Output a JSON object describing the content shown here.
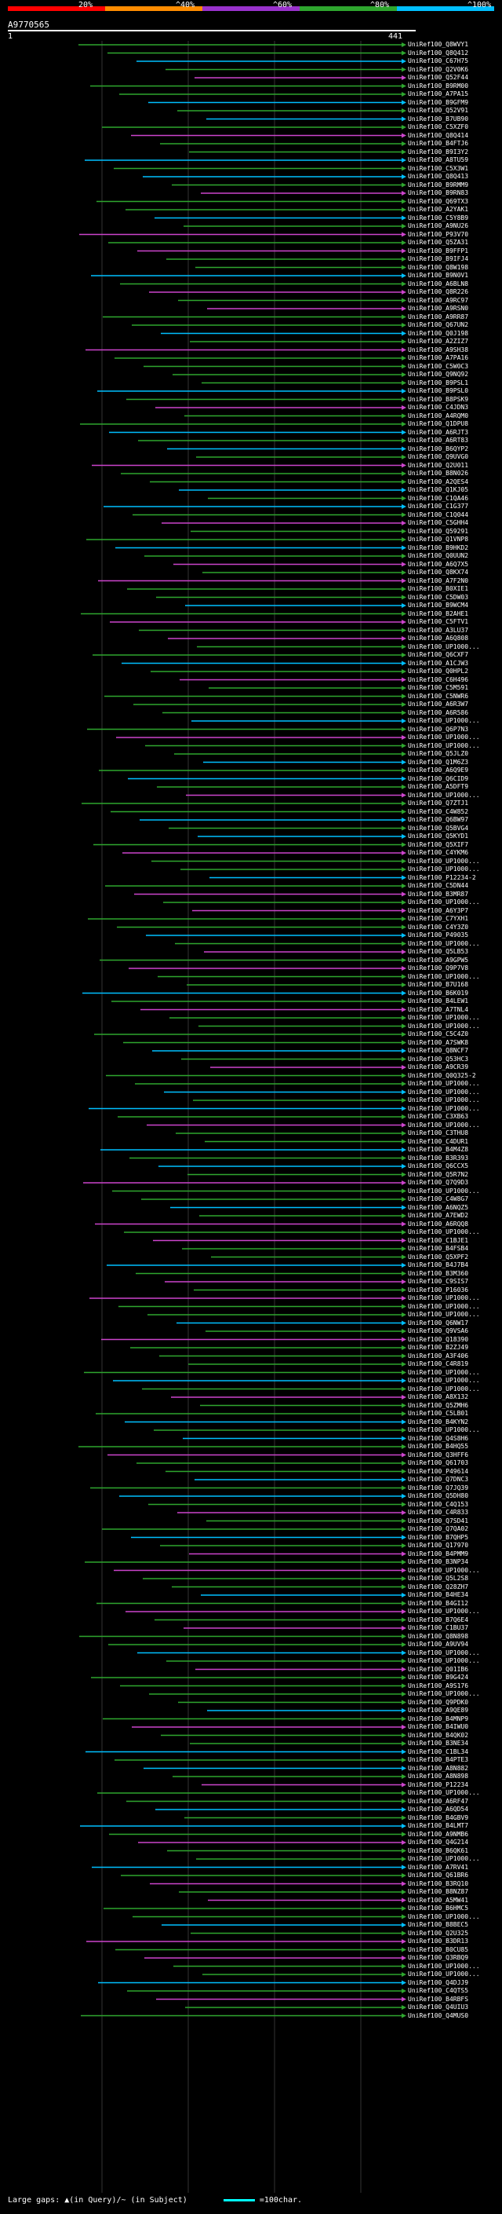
{
  "legend": [
    {
      "label": "20%",
      "color": "#ff0000"
    },
    {
      "label": "^40%",
      "color": "#ff8c00"
    },
    {
      "label": "^60%",
      "color": "#9932cc"
    },
    {
      "label": "^80%",
      "color": "#2ea62e"
    },
    {
      "label": "^100%",
      "color": "#00bfff"
    }
  ],
  "query": {
    "id": "A9770565",
    "start": "1",
    "end": "441"
  },
  "footer": {
    "text": "Large gaps: ▲(in Query)/~ (in Subject)",
    "scale": "=100char."
  },
  "hits": [
    "UniRef100_Q8WVY1",
    "UniRef100_Q8Q412",
    "UniRef100_C67H75",
    "UniRef100_Q2V0K6",
    "UniRef100_Q52F44",
    "UniRef100_B9RM00",
    "UniRef100_A7PA15",
    "UniRef100_B9GFM9",
    "UniRef100_Q52V91",
    "UniRef100_B7UB90",
    "UniRef100_C5XZF0",
    "UniRef100_Q8Q414",
    "UniRef100_B4FTJ6",
    "UniRef100_B9I3Y2",
    "UniRef100_A8TU59",
    "UniRef100_C5X3W1",
    "UniRef100_Q8Q413",
    "UniRef100_B9RMM9",
    "UniRef100_B9RN83",
    "UniRef100_Q69TX3",
    "UniRef100_A2YAK1",
    "UniRef100_C5Y8B9",
    "UniRef100_A9NU26",
    "UniRef100_P93V70",
    "UniRef100_Q5ZA31",
    "UniRef100_B9FFP1",
    "UniRef100_B9IFJ4",
    "UniRef100_Q8W198",
    "UniRef100_B9N0V1",
    "UniRef100_A6BLN8",
    "UniRef100_Q8R226",
    "UniRef100_A9RC97",
    "UniRef100_A9RSN0",
    "UniRef100_A9RR87",
    "UniRef100_Q67UN2",
    "UniRef100_Q0J198",
    "UniRef100_A2ZIZ7",
    "UniRef100_A9SH38",
    "UniRef100_A7PA16",
    "UniRef100_C5W0C3",
    "UniRef100_Q9NQ92",
    "UniRef100_B9PSL1",
    "UniRef100_B9PSL0",
    "UniRef100_B8PSK9",
    "UniRef100_C4JDN3",
    "UniRef100_A4RQM0",
    "UniRef100_Q1DPU8",
    "UniRef100_A6RJT3",
    "UniRef100_A6RT83",
    "UniRef100_B6QYP2",
    "UniRef100_Q9UVG0",
    "UniRef100_Q2U011",
    "UniRef100_B8N026",
    "UniRef100_A2QES4",
    "UniRef100_Q1KJ05",
    "UniRef100_C1QA46",
    "UniRef100_C1G377",
    "UniRef100_C1Q044",
    "UniRef100_C5GHH4",
    "UniRef100_Q59291",
    "UniRef100_Q1VNP8",
    "UniRef100_B9HKD2",
    "UniRef100_Q0UUN2",
    "UniRef100_A6Q7X5",
    "UniRef100_Q8KX74",
    "UniRef100_A7F2N0",
    "UniRef100_B0XIE1",
    "UniRef100_C5DW03",
    "UniRef100_B9WCM4",
    "UniRef100_B2AHE1",
    "UniRef100_C5FTV1",
    "UniRef100_A3LU37",
    "UniRef100_A6Q808",
    "UniRef100_UP1000...",
    "UniRef100_Q6CXF7",
    "UniRef100_A1CJW3",
    "UniRef100_Q0HPL2",
    "UniRef100_C6H496",
    "UniRef100_C5M591",
    "UniRef100_C5NWR6",
    "UniRef100_A6R3W7",
    "UniRef100_A6R586",
    "UniRef100_UP1000...",
    "UniRef100_Q6P7N3",
    "UniRef100_UP1000...",
    "UniRef100_UP1000...",
    "UniRef100_Q5JLZ0",
    "UniRef100_Q1M6Z3",
    "UniRef100_A6Q9E9",
    "UniRef100_Q6CID9",
    "UniRef100_A5DFT9",
    "UniRef100_UP1000...",
    "UniRef100_Q7ZTJ1",
    "UniRef100_C4W852",
    "UniRef100_Q6BW97",
    "UniRef100_Q5BVG4",
    "UniRef100_Q5KYD1",
    "UniRef100_Q5XIF7",
    "UniRef100_C4YKM6",
    "UniRef100_UP1000...",
    "UniRef100_UP1000...",
    "UniRef100_P12234-2",
    "UniRef100_C5DN44",
    "UniRef100_B3MR87",
    "UniRef100_UP1000...",
    "UniRef100_A6Y3P7",
    "UniRef100_C7YXH1",
    "UniRef100_C4Y3Z0",
    "UniRef100_P49035",
    "UniRef100_UP1000...",
    "UniRef100_Q5LB53",
    "UniRef100_A9GPW5",
    "UniRef100_Q9P7V8",
    "UniRef100_UP1000...",
    "UniRef100_B7U168",
    "UniRef100_B6K019",
    "UniRef100_B4LEW1",
    "UniRef100_A7TNL4",
    "UniRef100_UP1000...",
    "UniRef100_UP1000...",
    "UniRef100_C5C4Z0",
    "UniRef100_A7SWK8",
    "UniRef100_Q8NCF7",
    "UniRef100_Q53HC3",
    "UniRef100_A9CR39",
    "UniRef100_Q0Q325-2",
    "UniRef100_UP1000...",
    "UniRef100_UP1000...",
    "UniRef100_UP1000...",
    "UniRef100_UP1000...",
    "UniRef100_C3XB63",
    "UniRef100_UP1000...",
    "UniRef100_C3THU8",
    "UniRef100_C4DUR1",
    "UniRef100_B4M4Z8",
    "UniRef100_B3R393",
    "UniRef100_Q6CCX5",
    "UniRef100_Q5R7N2",
    "UniRef100_Q7Q9D3",
    "UniRef100_UP1000...",
    "UniRef100_C4W8G7",
    "UniRef100_A6NQZ5",
    "UniRef100_A7EWD2",
    "UniRef100_A6RQQ8",
    "UniRef100_UP1000...",
    "UniRef100_C1BJE1",
    "UniRef100_B4FSB4",
    "UniRef100_Q5XPF2",
    "UniRef100_B4J7B4",
    "UniRef100_B3M360",
    "UniRef100_C9SIS7",
    "UniRef100_P16036",
    "UniRef100_UP1000...",
    "UniRef100_UP1000...",
    "UniRef100_UP1000...",
    "UniRef100_Q6NW17",
    "UniRef100_Q9VSA6",
    "UniRef100_Q18390",
    "UniRef100_B2ZJ49",
    "UniRef100_A3F406",
    "UniRef100_C4R819",
    "UniRef100_UP1000...",
    "UniRef100_UP1000...",
    "UniRef100_UP1000...",
    "UniRef100_A8X132",
    "UniRef100_Q5ZMH6",
    "UniRef100_C5LB01",
    "UniRef100_B4KYN2",
    "UniRef100_UP1000...",
    "UniRef100_Q4S8H6",
    "UniRef100_B4HQ55",
    "UniRef100_Q3HFF6",
    "UniRef100_Q61703",
    "UniRef100_P49614",
    "UniRef100_Q7DNC3",
    "UniRef100_Q7JQ39",
    "UniRef100_Q5DH80",
    "UniRef100_C4Q153",
    "UniRef100_C4R833",
    "UniRef100_Q7SD41",
    "UniRef100_Q7QA02",
    "UniRef100_B7QHP5",
    "UniRef100_Q17970",
    "UniRef100_B4PMM9",
    "UniRef100_B3NP34",
    "UniRef100_UP1000...",
    "UniRef100_Q5L2S8",
    "UniRef100_Q28ZH7",
    "UniRef100_B4HE34",
    "UniRef100_B4GI12",
    "UniRef100_UP1000...",
    "UniRef100_B7Q6E4",
    "UniRef100_C1BU37",
    "UniRef100_Q8N898",
    "UniRef100_A9UV94",
    "UniRef100_UP1000...",
    "UniRef100_UP1000...",
    "UniRef100_Q01IB6",
    "UniRef100_B9G424",
    "UniRef100_A9S176",
    "UniRef100_UP1000...",
    "UniRef100_Q9PDK0",
    "UniRef100_A9QE89",
    "UniRef100_B4MNP9",
    "UniRef100_B4IWU0",
    "UniRef100_B4QK02",
    "UniRef100_B3NE34",
    "UniRef100_C1BL34",
    "UniRef100_B4PTE3",
    "UniRef100_A8N882",
    "UniRef100_A8N898",
    "UniRef100_P12234",
    "UniRef100_UP1000...",
    "UniRef100_A6RF47",
    "UniRef100_A6QD54",
    "UniRef100_B4GBV9",
    "UniRef100_B4LMT7",
    "UniRef100_A9NMB6",
    "UniRef100_Q4G214",
    "UniRef100_B6QK61",
    "UniRef100_UP1000...",
    "UniRef100_A7RV41",
    "UniRef100_Q61BR6",
    "UniRef100_B3RQ10",
    "UniRef100_B8NZ87",
    "UniRef100_A5MW41",
    "UniRef100_B6HMC5",
    "UniRef100_UP1000...",
    "UniRef100_B8BEC5",
    "UniRef100_Q2U325",
    "UniRef100_B3DR13",
    "UniRef100_B0CU85",
    "UniRef100_Q3RBQ9",
    "UniRef100_UP1000...",
    "UniRef100_UP1000...",
    "UniRef100_Q4DJJ9",
    "UniRef100_C4QTS5",
    "UniRef100_B4RBFS",
    "UniRef100_Q4UIU3",
    "UniRef100_Q4MUS0"
  ]
}
